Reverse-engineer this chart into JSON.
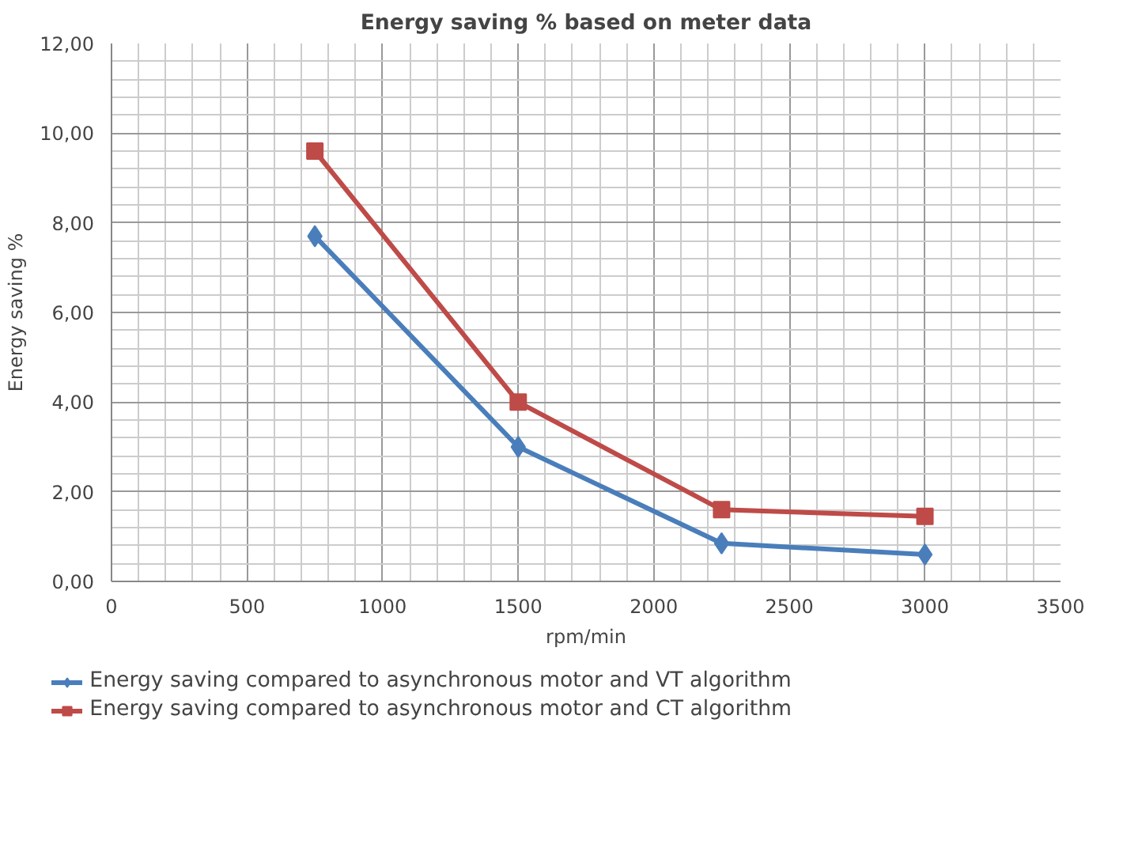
{
  "chart_data": {
    "type": "line",
    "title": "Energy saving % based on meter data",
    "xlabel": "rpm/min",
    "ylabel": "Energy saving %",
    "x": [
      750,
      1500,
      2250,
      3000
    ],
    "series": [
      {
        "name": "Energy saving compared to asynchronous motor and VT algorithm",
        "color": "#4a7ebb",
        "marker": "diamond",
        "values": [
          7.7,
          3.0,
          0.85,
          0.6
        ]
      },
      {
        "name": "Energy saving compared to asynchronous motor and CT algorithm",
        "color": "#be4b48",
        "marker": "square",
        "values": [
          9.6,
          4.0,
          1.6,
          1.45
        ]
      }
    ],
    "xlim": [
      0,
      3500
    ],
    "xticks": [
      0,
      500,
      1000,
      1500,
      2000,
      2500,
      3000,
      3500
    ],
    "ylim": [
      0,
      12
    ],
    "yticks": [
      {
        "value": 0,
        "label": "0,00"
      },
      {
        "value": 2,
        "label": "2,00"
      },
      {
        "value": 4,
        "label": "4,00"
      },
      {
        "value": 6,
        "label": "6,00"
      },
      {
        "value": 8,
        "label": "8,00"
      },
      {
        "value": 10,
        "label": "10,00"
      },
      {
        "value": 12,
        "label": "12,00"
      }
    ],
    "grid": true,
    "legend": "bottom",
    "line_style": "solid"
  }
}
